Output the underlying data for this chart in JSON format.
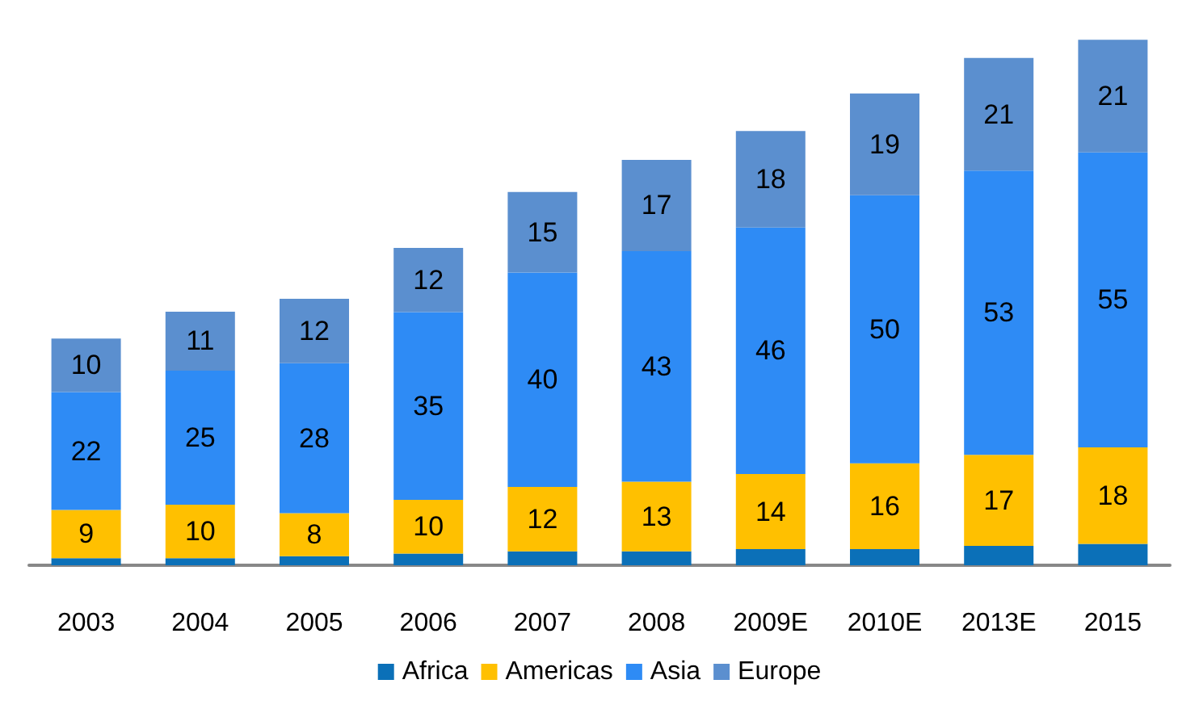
{
  "chart_data": {
    "type": "bar",
    "stacked": true,
    "legend": "bottom",
    "categories": [
      "2003",
      "2004",
      "2005",
      "2006",
      "2007",
      "2008",
      "2009E",
      "2010E",
      "2013E",
      "2015"
    ],
    "series": [
      {
        "name": "Africa",
        "color": "#0b70b8",
        "values": [
          1.3,
          1.3,
          1.7,
          2.2,
          2.6,
          2.6,
          3,
          3,
          3.6,
          4
        ],
        "value_labels": [
          null,
          null,
          null,
          null,
          null,
          null,
          null,
          null,
          null,
          null
        ]
      },
      {
        "name": "Americas",
        "color": "#ffc000",
        "values": [
          9,
          10,
          8,
          10,
          12,
          13,
          14,
          16,
          17,
          18
        ],
        "value_labels": [
          "9",
          "10",
          "8",
          "10",
          "12",
          "13",
          "14",
          "16",
          "17",
          "18"
        ]
      },
      {
        "name": "Asia",
        "color": "#2e8bf5",
        "values": [
          22,
          25,
          28,
          35,
          40,
          43,
          46,
          50,
          53,
          55
        ],
        "value_labels": [
          "22",
          "25",
          "28",
          "35",
          "40",
          "43",
          "46",
          "50",
          "53",
          "55"
        ]
      },
      {
        "name": "Europe",
        "color": "#5b8fcf",
        "values": [
          10,
          11,
          12,
          12,
          15,
          17,
          18,
          19,
          21,
          21
        ],
        "value_labels": [
          "10",
          "11",
          "12",
          "12",
          "15",
          "17",
          "18",
          "19",
          "21",
          "21"
        ]
      }
    ]
  }
}
